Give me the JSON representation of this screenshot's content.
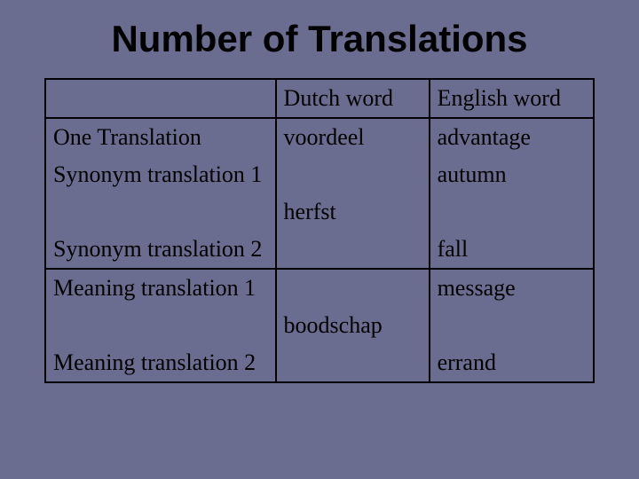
{
  "title": "Number of Translations",
  "colors": {
    "background": "#6a6d8f",
    "text": "#000000",
    "border": "#000000"
  },
  "typography": {
    "title_font": "Arial",
    "title_fontsize": 42,
    "title_weight": "bold",
    "body_font": "Times New Roman",
    "body_fontsize": 26
  },
  "table": {
    "type": "table",
    "columns": [
      {
        "key": "label",
        "heading": "",
        "width_pct": 42
      },
      {
        "key": "dutch",
        "heading": "Dutch word",
        "width_pct": 28
      },
      {
        "key": "english",
        "heading": "English word",
        "width_pct": 30
      }
    ],
    "rows": [
      {
        "label": "",
        "dutch": "Dutch word",
        "english": "English word"
      },
      {
        "label": "One Translation",
        "dutch": "voordeel",
        "english": "advantage"
      },
      {
        "label": "Synonym translation 1",
        "dutch": "",
        "english": "autumn"
      },
      {
        "label": "",
        "dutch": "herfst",
        "english": ""
      },
      {
        "label": "Synonym translation 2",
        "dutch": "",
        "english": "fall"
      },
      {
        "label": "Meaning translation 1",
        "dutch": "",
        "english": "message"
      },
      {
        "label": "",
        "dutch": "boodschap",
        "english": ""
      },
      {
        "label": "Meaning translation 2",
        "dutch": "",
        "english": "errand"
      }
    ],
    "border_color": "#000000",
    "border_width": 2
  }
}
